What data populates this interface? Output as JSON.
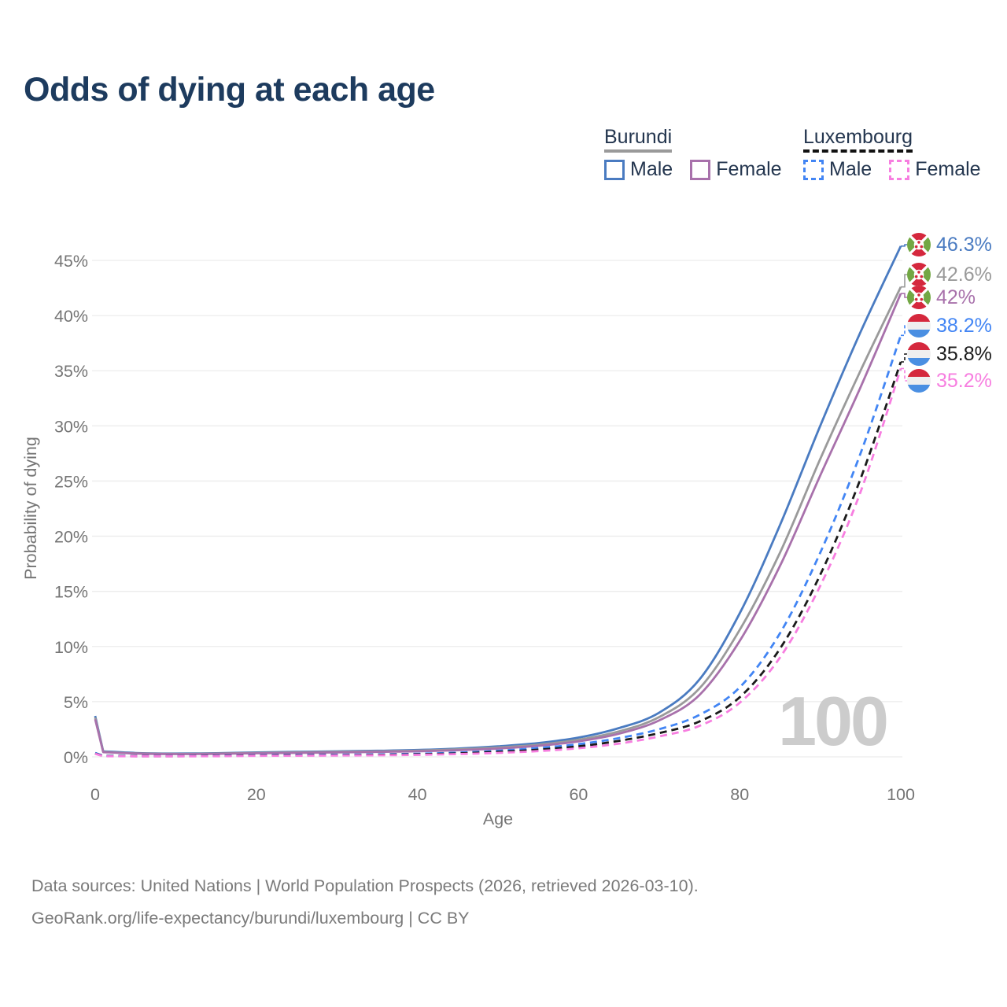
{
  "title": "Odds of dying at each age",
  "legend": {
    "burundi": {
      "title": "Burundi",
      "male": "Male",
      "female": "Female"
    },
    "luxembourg": {
      "title": "Luxembourg",
      "male": "Male",
      "female": "Female"
    }
  },
  "watermark": "100",
  "footer": {
    "line1": "Data sources: United Nations | World Population Prospects (2026, retrieved 2026-03-10).",
    "line2": "GeoRank.org/life-expectancy/burundi/luxembourg | CC BY"
  },
  "colors": {
    "title_text": "#1d3b5e",
    "legend_text": "#24364f",
    "axis_text": "#757575",
    "grid_line": "#ececec",
    "watermark": "#cccccc",
    "footer_text": "#7a7a7a",
    "burundi_underline": "#9a9a9a",
    "luxembourg_underline": "#111111",
    "burundi_male": "#4a7bc1",
    "burundi_both": "#9a9a9a",
    "burundi_female": "#a871ab",
    "luxembourg_male": "#4285f4",
    "luxembourg_both": "#1a1a1a",
    "luxembourg_female": "#f77ee0",
    "flag_burundi_red": "#d5283d",
    "flag_burundi_green": "#72a744",
    "flag_lux_red": "#d5283d",
    "flag_lux_white": "#efefef",
    "flag_lux_blue": "#4a8fe2"
  },
  "chart_data": {
    "type": "line",
    "title": "Odds of dying at each age",
    "xlabel": "Age",
    "ylabel": "Probability of dying",
    "xlim": [
      0,
      100
    ],
    "ylim": [
      0,
      47
    ],
    "x_ticks": [
      0,
      20,
      40,
      60,
      80,
      100
    ],
    "y_ticks": [
      "0%",
      "5%",
      "10%",
      "15%",
      "20%",
      "25%",
      "30%",
      "35%",
      "40%",
      "45%"
    ],
    "y_tick_values": [
      0,
      5,
      10,
      15,
      20,
      25,
      30,
      35,
      40,
      45
    ],
    "grid": "horizontal",
    "legend_position": "top-right",
    "series": [
      {
        "id": "burundi-male",
        "name": "Burundi Male",
        "country": "burundi",
        "line": "solid",
        "color_key": "burundi_male",
        "end_label": "46.3%",
        "points": [
          [
            0,
            3.7
          ],
          [
            1,
            0.5
          ],
          [
            5,
            0.35
          ],
          [
            10,
            0.3
          ],
          [
            15,
            0.33
          ],
          [
            20,
            0.4
          ],
          [
            25,
            0.45
          ],
          [
            30,
            0.5
          ],
          [
            35,
            0.55
          ],
          [
            40,
            0.62
          ],
          [
            45,
            0.75
          ],
          [
            50,
            0.95
          ],
          [
            55,
            1.25
          ],
          [
            60,
            1.75
          ],
          [
            65,
            2.6
          ],
          [
            70,
            4.0
          ],
          [
            75,
            7.0
          ],
          [
            80,
            13.0
          ],
          [
            85,
            21.0
          ],
          [
            90,
            30.0
          ],
          [
            95,
            38.5
          ],
          [
            100,
            46.3
          ]
        ]
      },
      {
        "id": "burundi-both",
        "name": "Burundi (both)",
        "country": "burundi",
        "line": "solid",
        "color_key": "burundi_both",
        "end_label": "42.6%",
        "points": [
          [
            0,
            3.55
          ],
          [
            1,
            0.45
          ],
          [
            5,
            0.32
          ],
          [
            10,
            0.27
          ],
          [
            15,
            0.3
          ],
          [
            20,
            0.36
          ],
          [
            25,
            0.4
          ],
          [
            30,
            0.45
          ],
          [
            35,
            0.5
          ],
          [
            40,
            0.56
          ],
          [
            45,
            0.68
          ],
          [
            50,
            0.85
          ],
          [
            55,
            1.1
          ],
          [
            60,
            1.55
          ],
          [
            65,
            2.3
          ],
          [
            70,
            3.6
          ],
          [
            75,
            6.2
          ],
          [
            80,
            11.5
          ],
          [
            85,
            18.5
          ],
          [
            90,
            27.0
          ],
          [
            95,
            35.0
          ],
          [
            100,
            42.6
          ]
        ]
      },
      {
        "id": "burundi-female",
        "name": "Burundi Female",
        "country": "burundi",
        "line": "solid",
        "color_key": "burundi_female",
        "end_label": "42%",
        "points": [
          [
            0,
            3.4
          ],
          [
            1,
            0.42
          ],
          [
            5,
            0.3
          ],
          [
            10,
            0.25
          ],
          [
            15,
            0.27
          ],
          [
            20,
            0.32
          ],
          [
            25,
            0.36
          ],
          [
            30,
            0.4
          ],
          [
            35,
            0.45
          ],
          [
            40,
            0.5
          ],
          [
            45,
            0.6
          ],
          [
            50,
            0.75
          ],
          [
            55,
            1.0
          ],
          [
            60,
            1.4
          ],
          [
            65,
            2.1
          ],
          [
            70,
            3.3
          ],
          [
            75,
            5.6
          ],
          [
            80,
            10.5
          ],
          [
            85,
            17.3
          ],
          [
            90,
            25.5
          ],
          [
            95,
            33.5
          ],
          [
            100,
            42.0
          ]
        ]
      },
      {
        "id": "luxembourg-male",
        "name": "Luxembourg Male",
        "country": "luxembourg",
        "line": "dashed",
        "color_key": "luxembourg_male",
        "end_label": "38.2%",
        "points": [
          [
            0,
            0.35
          ],
          [
            1,
            0.1
          ],
          [
            5,
            0.08
          ],
          [
            10,
            0.08
          ],
          [
            15,
            0.1
          ],
          [
            20,
            0.15
          ],
          [
            25,
            0.17
          ],
          [
            30,
            0.19
          ],
          [
            35,
            0.22
          ],
          [
            40,
            0.28
          ],
          [
            45,
            0.38
          ],
          [
            50,
            0.55
          ],
          [
            55,
            0.8
          ],
          [
            60,
            1.15
          ],
          [
            65,
            1.7
          ],
          [
            70,
            2.5
          ],
          [
            75,
            3.8
          ],
          [
            80,
            6.3
          ],
          [
            85,
            11.2
          ],
          [
            90,
            18.5
          ],
          [
            95,
            27.5
          ],
          [
            100,
            38.2
          ]
        ]
      },
      {
        "id": "luxembourg-both",
        "name": "Luxembourg (both)",
        "country": "luxembourg",
        "line": "dashed",
        "color_key": "luxembourg_both",
        "end_label": "35.8%",
        "points": [
          [
            0,
            0.3
          ],
          [
            1,
            0.08
          ],
          [
            5,
            0.06
          ],
          [
            10,
            0.06
          ],
          [
            15,
            0.08
          ],
          [
            20,
            0.12
          ],
          [
            25,
            0.13
          ],
          [
            30,
            0.15
          ],
          [
            35,
            0.18
          ],
          [
            40,
            0.23
          ],
          [
            45,
            0.31
          ],
          [
            50,
            0.45
          ],
          [
            55,
            0.65
          ],
          [
            60,
            0.95
          ],
          [
            65,
            1.45
          ],
          [
            70,
            2.15
          ],
          [
            75,
            3.2
          ],
          [
            80,
            5.4
          ],
          [
            85,
            9.8
          ],
          [
            90,
            16.5
          ],
          [
            95,
            25.2
          ],
          [
            100,
            35.8
          ]
        ]
      },
      {
        "id": "luxembourg-female",
        "name": "Luxembourg Female",
        "country": "luxembourg",
        "line": "dashed",
        "color_key": "luxembourg_female",
        "end_label": "35.2%",
        "points": [
          [
            0,
            0.28
          ],
          [
            1,
            0.06
          ],
          [
            5,
            0.05
          ],
          [
            10,
            0.05
          ],
          [
            15,
            0.06
          ],
          [
            20,
            0.09
          ],
          [
            25,
            0.1
          ],
          [
            30,
            0.12
          ],
          [
            35,
            0.14
          ],
          [
            40,
            0.18
          ],
          [
            45,
            0.25
          ],
          [
            50,
            0.36
          ],
          [
            55,
            0.52
          ],
          [
            60,
            0.78
          ],
          [
            65,
            1.2
          ],
          [
            70,
            1.85
          ],
          [
            75,
            2.8
          ],
          [
            80,
            4.9
          ],
          [
            85,
            9.0
          ],
          [
            90,
            15.5
          ],
          [
            95,
            24.0
          ],
          [
            100,
            35.2
          ]
        ]
      }
    ]
  }
}
